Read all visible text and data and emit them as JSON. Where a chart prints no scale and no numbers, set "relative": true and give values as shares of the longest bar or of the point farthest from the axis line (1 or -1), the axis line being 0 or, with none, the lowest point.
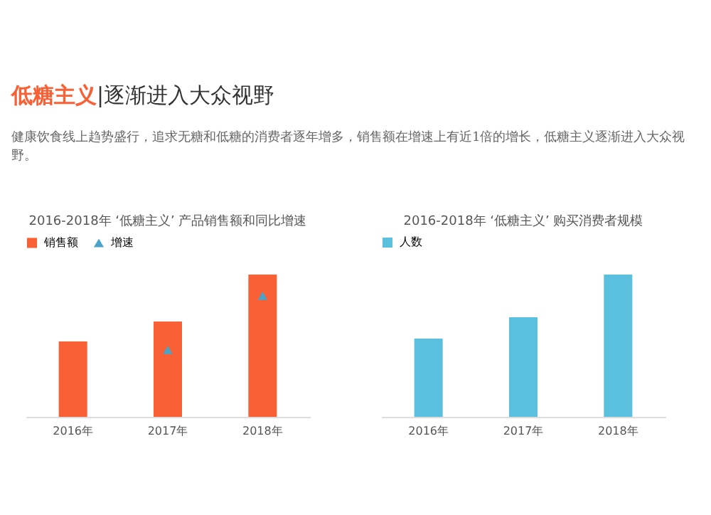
{
  "chart_data": [
    {
      "type": "other",
      "title": "低糖主义|逐渐进入大众视野",
      "subtitle": "健康饮食线上趋势盛行，追求无糖和低糖的消费者逐年增多，销售额在增速上有近1倍的增长，低糖主义逐渐进入大众视野。"
    },
    {
      "type": "bar",
      "title": "2016-2018年 ‘低糖主义’ 产品销售额和同比增速",
      "relative": true,
      "legend": "top",
      "categories": [
        "2016年",
        "2017年",
        "2018年"
      ],
      "series": [
        {
          "name": "销售额",
          "color": "#f96035",
          "values": [
            0.53,
            0.67,
            1
          ]
        },
        {
          "name": "增速",
          "type": "scatter",
          "marker": "triangle",
          "color": "#4aa3c8",
          "values": [
            null,
            0.47,
            0.85
          ]
        }
      ]
    },
    {
      "type": "bar",
      "title": "2016-2018年 ‘低糖主义’ 购买消费者规模",
      "relative": true,
      "legend": "top",
      "categories": [
        "2016年",
        "2017年",
        "2018年"
      ],
      "series": [
        {
          "name": "人数",
          "color": "#5bc0de",
          "values": [
            0.55,
            0.7,
            1
          ]
        }
      ]
    }
  ]
}
